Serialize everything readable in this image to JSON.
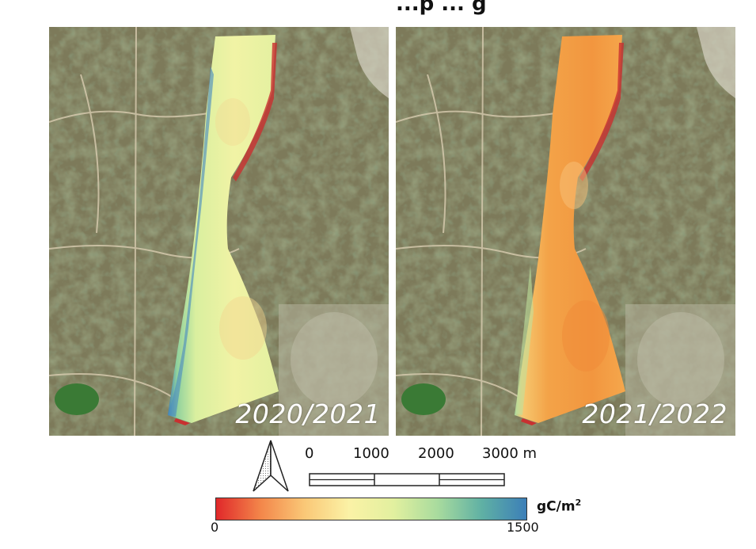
{
  "title": "...p ... g",
  "panels": [
    {
      "year_label": "2020/2021"
    },
    {
      "year_label": "2021/2022"
    }
  ],
  "scale_bar": {
    "labels": [
      "0",
      "1000",
      "2000",
      "3000 m"
    ]
  },
  "legend": {
    "min_label": "0",
    "max_label": "1500",
    "unit_base": "gC/m",
    "unit_exp": "2",
    "colors": [
      "#e0282a",
      "#f3864a",
      "#fac877",
      "#fbf2a6",
      "#e2f09f",
      "#a8db9e",
      "#5fb0a4",
      "#3c7fb8"
    ]
  },
  "colors": {
    "panel_2020_fill": "#ecf1a0",
    "panel_2021_fill": "#f4a347",
    "satellite_base": "#7d7a5a"
  }
}
